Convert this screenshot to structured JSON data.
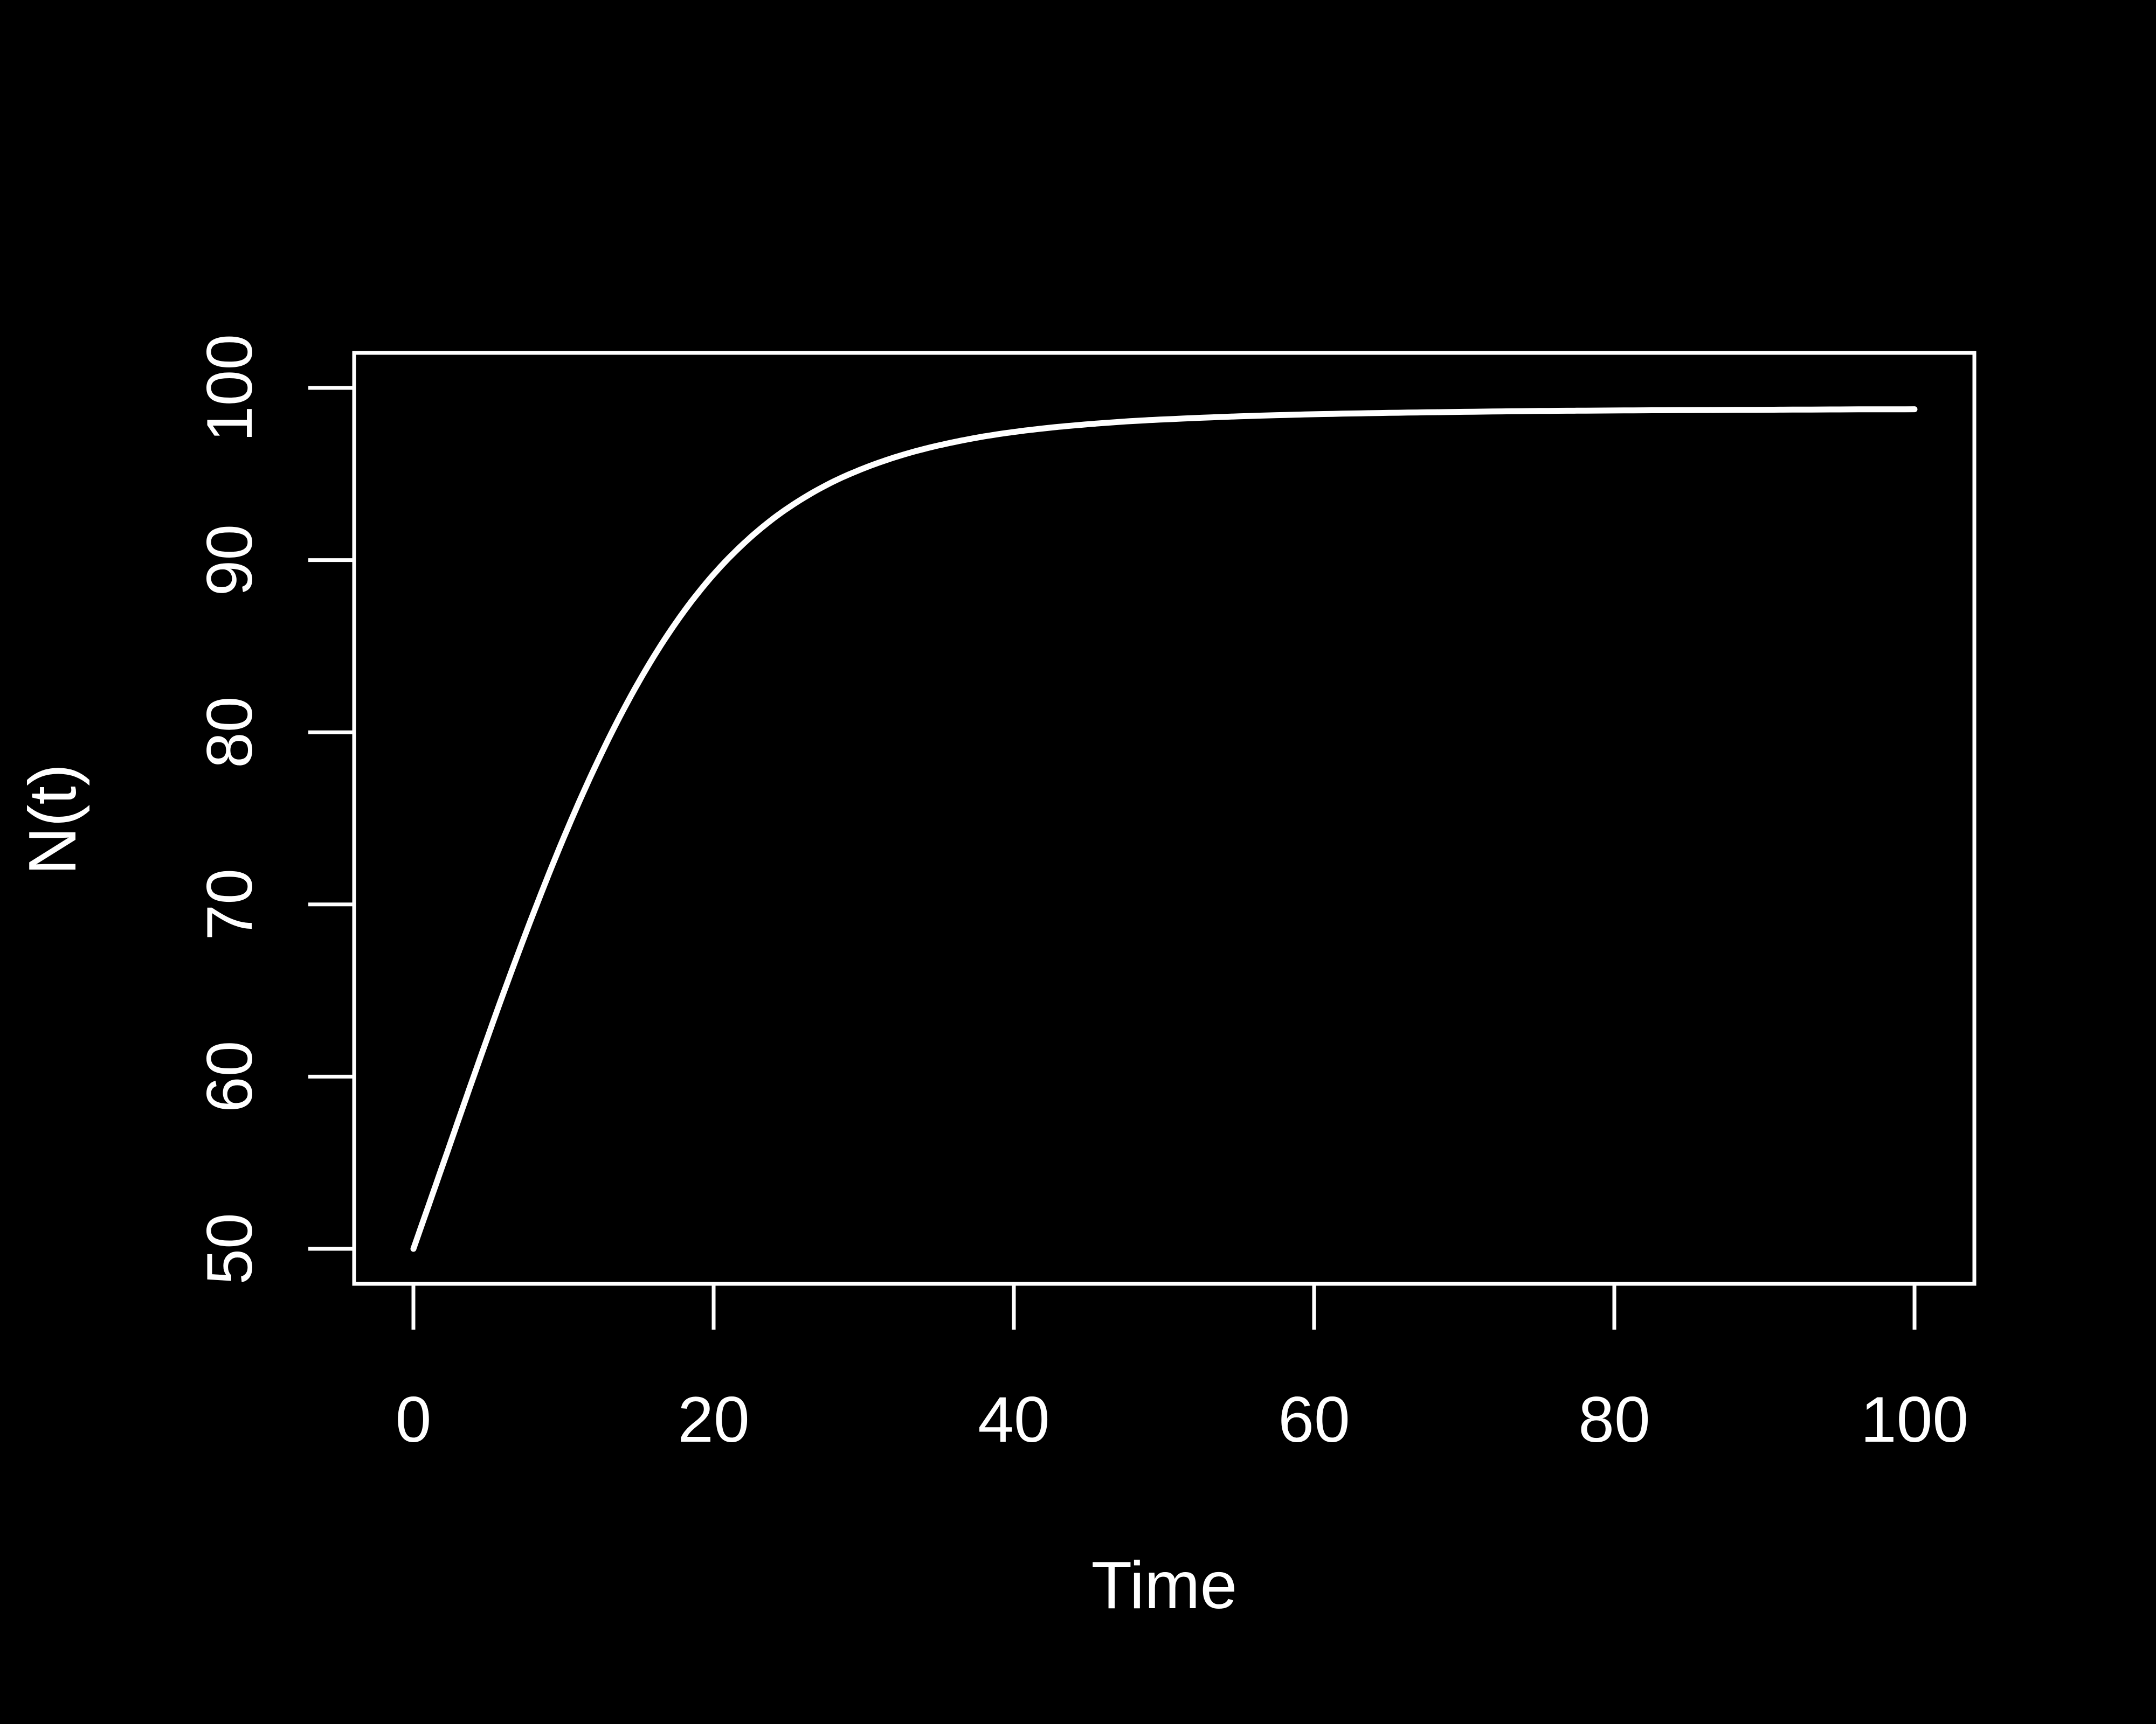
{
  "chart_data": {
    "type": "line",
    "title": "",
    "xlabel": "Time",
    "ylabel": "N(t)",
    "xlim": [
      0,
      100
    ],
    "ylim": [
      50,
      100
    ],
    "x_ticks": [
      0,
      20,
      40,
      60,
      80,
      100
    ],
    "y_ticks": [
      50,
      60,
      70,
      80,
      90,
      100
    ],
    "grid": false,
    "legend": "none",
    "colors": {
      "background": "#000000",
      "foreground": "#ffffff",
      "series": "#ffffff"
    },
    "series": [
      {
        "x": [
          0,
          2,
          4,
          6,
          8,
          10,
          12,
          14,
          16,
          18,
          20,
          22,
          24,
          26,
          28,
          30,
          32,
          34,
          36,
          38,
          40,
          42,
          44,
          46,
          48,
          50,
          55,
          60,
          65,
          70,
          75,
          80,
          85,
          90,
          95,
          100
        ],
        "values": [
          50.0,
          54.98,
          59.97,
          64.85,
          69.5,
          73.85,
          77.8,
          81.32,
          84.38,
          86.99,
          89.17,
          90.96,
          92.43,
          93.61,
          94.57,
          95.33,
          95.95,
          96.45,
          96.85,
          97.18,
          97.44,
          97.65,
          97.82,
          97.96,
          98.08,
          98.17,
          98.35,
          98.47,
          98.55,
          98.61,
          98.66,
          98.69,
          98.71,
          98.73,
          98.75,
          98.76
        ]
      }
    ]
  }
}
